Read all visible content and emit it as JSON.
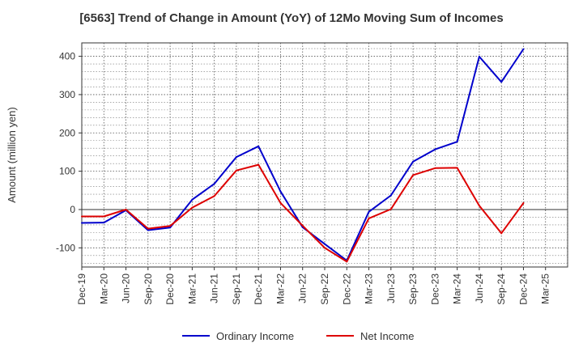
{
  "chart_data": {
    "type": "line",
    "title": "[6563]  Trend of Change in Amount (YoY) of 12Mo Moving Sum of Incomes",
    "xlabel": "",
    "ylabel": "Amount (million yen)",
    "ylim": [
      -150,
      435
    ],
    "yticks": [
      -100,
      0,
      100,
      200,
      300,
      400
    ],
    "grid": true,
    "legend_position": "bottom",
    "categories": [
      "Dec-19",
      "Mar-20",
      "Jun-20",
      "Sep-20",
      "Dec-20",
      "Mar-21",
      "Jun-21",
      "Sep-21",
      "Dec-21",
      "Mar-22",
      "Jun-22",
      "Sep-22",
      "Dec-22",
      "Mar-23",
      "Jun-23",
      "Sep-23",
      "Dec-23",
      "Mar-24",
      "Jun-24",
      "Sep-24",
      "Dec-24",
      "Mar-25"
    ],
    "series": [
      {
        "name": "Ordinary Income",
        "color": "#0000cc",
        "values": [
          -35,
          -34,
          -2,
          -54,
          -47,
          26,
          67,
          137,
          165,
          47,
          -46,
          -90,
          -133,
          -6,
          37,
          125,
          157,
          177,
          399,
          333,
          419,
          null
        ]
      },
      {
        "name": "Net Income",
        "color": "#dd0000",
        "values": [
          -18,
          -18,
          0,
          -50,
          -43,
          5,
          35,
          102,
          117,
          17,
          -42,
          -100,
          -136,
          -23,
          1,
          90,
          108,
          109,
          10,
          -62,
          17,
          null
        ]
      }
    ]
  }
}
